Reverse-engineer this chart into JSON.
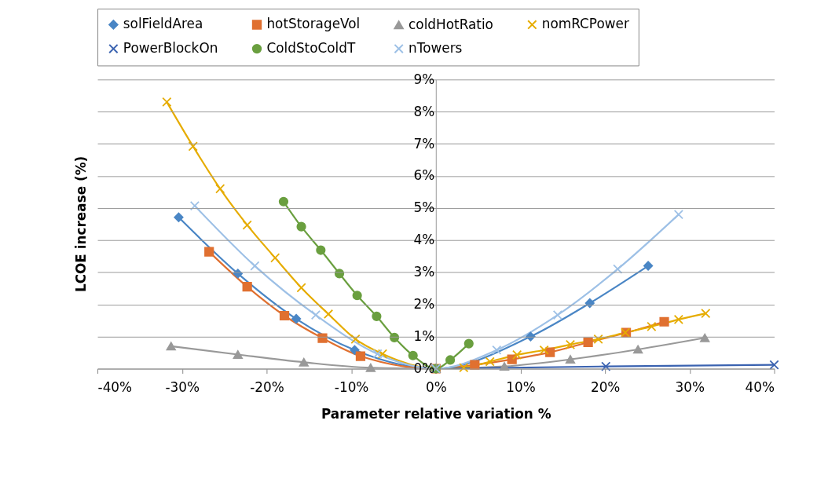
{
  "chart_data": {
    "type": "line",
    "xlabel": "Parameter relative variation %",
    "ylabel": "LCOE increase (%)",
    "xlim": [
      -40,
      40
    ],
    "ylim": [
      0,
      9
    ],
    "xticks": [
      {
        "value": -40,
        "label": "-40%"
      },
      {
        "value": -30,
        "label": "-30%"
      },
      {
        "value": -20,
        "label": "-20%"
      },
      {
        "value": -10,
        "label": "-10%"
      },
      {
        "value": 0,
        "label": "0%"
      },
      {
        "value": 10,
        "label": "10%"
      },
      {
        "value": 20,
        "label": "20%"
      },
      {
        "value": 30,
        "label": "30%"
      },
      {
        "value": 40,
        "label": "40%"
      }
    ],
    "yticks": [
      {
        "value": 0,
        "label": "0%"
      },
      {
        "value": 1,
        "label": "1%"
      },
      {
        "value": 2,
        "label": "2%"
      },
      {
        "value": 3,
        "label": "3%"
      },
      {
        "value": 4,
        "label": "4%"
      },
      {
        "value": 5,
        "label": "5%"
      },
      {
        "value": 6,
        "label": "6%"
      },
      {
        "value": 7,
        "label": "7%"
      },
      {
        "value": 8,
        "label": "8%"
      },
      {
        "value": 9,
        "label": "9%"
      }
    ],
    "grid": "y",
    "legend": "top",
    "series": [
      {
        "name": "solFieldArea",
        "color": "#4a86c5",
        "marker": "diamond",
        "x": [
          -30.4,
          -23.4,
          -16.5,
          -9.6,
          0,
          11.2,
          18.2,
          25.1
        ],
        "values": [
          4.71,
          2.96,
          1.55,
          0.58,
          0,
          1.0,
          2.04,
          3.2
        ]
      },
      {
        "name": "hotStorageVol",
        "color": "#e07030",
        "marker": "square",
        "x": [
          -26.8,
          -22.3,
          -17.9,
          -13.4,
          -8.9,
          0,
          4.6,
          9.0,
          13.5,
          18.0,
          22.5,
          27.0
        ],
        "values": [
          3.64,
          2.55,
          1.65,
          0.95,
          0.39,
          0,
          0.12,
          0.29,
          0.51,
          0.82,
          1.12,
          1.46
        ]
      },
      {
        "name": "coldHotRatio",
        "color": "#999999",
        "marker": "triangle",
        "x": [
          -31.3,
          -23.4,
          -15.6,
          -7.7,
          0,
          8.1,
          15.9,
          23.9,
          31.8
        ],
        "values": [
          0.7,
          0.44,
          0.2,
          0.03,
          0,
          0.07,
          0.29,
          0.6,
          0.96
        ]
      },
      {
        "name": "nomRCPower",
        "color": "#e6ac00",
        "marker": "cross",
        "x": [
          -31.8,
          -28.7,
          -25.5,
          -22.3,
          -19.0,
          -15.9,
          -12.7,
          -9.5,
          -6.3,
          0,
          3.3,
          6.4,
          9.6,
          12.8,
          15.9,
          19.2,
          22.4,
          25.5,
          28.7,
          31.9
        ],
        "values": [
          8.3,
          6.92,
          5.6,
          4.47,
          3.45,
          2.52,
          1.7,
          0.92,
          0.46,
          0,
          0.03,
          0.22,
          0.43,
          0.58,
          0.75,
          0.92,
          1.12,
          1.31,
          1.53,
          1.72
        ]
      },
      {
        "name": "PowerBlockOn",
        "color": "#3a62b0",
        "marker": "cross",
        "x": [
          0,
          20.1,
          40
        ],
        "values": [
          0,
          0.07,
          0.12
        ]
      },
      {
        "name": "ColdStoColdT",
        "color": "#6a9f3f",
        "marker": "circle",
        "x": [
          -18.0,
          -15.9,
          -13.6,
          -11.4,
          -9.3,
          -7.0,
          -4.9,
          -2.7,
          0,
          1.7,
          3.9
        ],
        "values": [
          5.2,
          4.42,
          3.69,
          2.96,
          2.28,
          1.63,
          0.97,
          0.41,
          0,
          0.27,
          0.78
        ]
      },
      {
        "name": "nTowers",
        "color": "#9dc0e6",
        "marker": "cross",
        "x": [
          -28.5,
          -21.4,
          -14.2,
          -6.9,
          0,
          7.2,
          14.4,
          21.5,
          28.7
        ],
        "values": [
          5.07,
          3.2,
          1.67,
          0.46,
          0,
          0.58,
          1.67,
          3.1,
          4.8
        ]
      }
    ]
  }
}
